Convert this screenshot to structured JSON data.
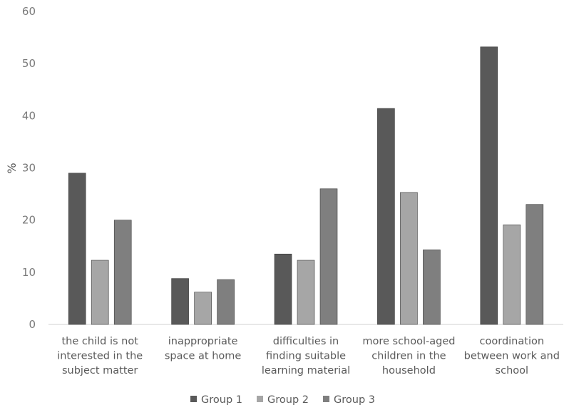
{
  "chart_data": {
    "type": "bar",
    "title": "",
    "xlabel": "",
    "ylabel": "%",
    "ylim": [
      0,
      60
    ],
    "yticks": [
      0,
      10,
      20,
      30,
      40,
      50,
      60
    ],
    "grid": false,
    "legend_position": "bottom",
    "categories": [
      [
        "the child is not",
        "interested in the",
        "subject matter"
      ],
      [
        "inappropriate",
        "space at home"
      ],
      [
        "difficulties in",
        "finding suitable",
        "learning material"
      ],
      [
        "more school-aged",
        "children in the",
        "household"
      ],
      [
        "coordination",
        "between work and",
        "school"
      ]
    ],
    "series": [
      {
        "name": "Group 1",
        "color": "#595959",
        "values": [
          29,
          8.8,
          13.5,
          41.4,
          53.2
        ]
      },
      {
        "name": "Group 2",
        "color": "#a6a6a6",
        "values": [
          12.3,
          6.2,
          12.3,
          25.3,
          19.1
        ]
      },
      {
        "name": "Group 3",
        "color": "#7f7f7f",
        "values": [
          20,
          8.6,
          26,
          14.3,
          23
        ]
      }
    ]
  }
}
